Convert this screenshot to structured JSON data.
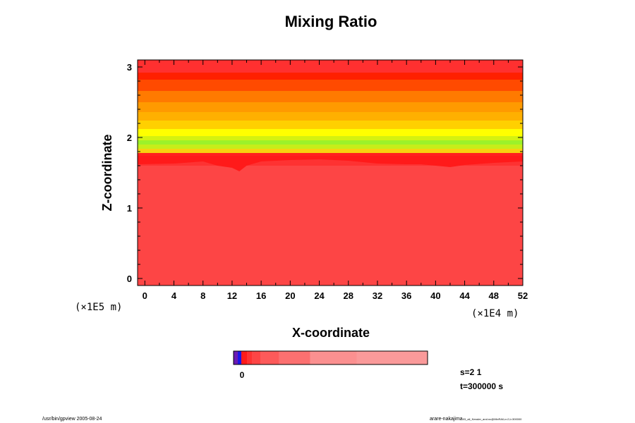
{
  "chart_data": {
    "type": "heatmap",
    "title": "Mixing Ratio",
    "xlabel": "X-coordinate",
    "ylabel": "Z-coordinate",
    "x_unit": "(×1E4 m)",
    "y_unit": "(×1E5 m)",
    "xlim": [
      -1,
      52
    ],
    "ylim": [
      -0.1,
      3.1
    ],
    "xticks": [
      0,
      4,
      8,
      12,
      16,
      20,
      24,
      28,
      32,
      36,
      40,
      44,
      48,
      52
    ],
    "yticks": [
      0,
      1,
      2,
      3
    ],
    "grid": false,
    "layers": [
      {
        "z_bottom": -0.1,
        "z_top": 1.6,
        "color": "#fd4545"
      },
      {
        "z_bottom": 1.6,
        "z_top": 1.72,
        "color": "#fe3232"
      },
      {
        "z_bottom": 1.72,
        "z_top": 1.78,
        "color": "#ff2020"
      },
      {
        "z_bottom": 1.78,
        "z_top": 1.84,
        "color": "#f7d210"
      },
      {
        "z_bottom": 1.84,
        "z_top": 1.9,
        "color": "#c6ee1a"
      },
      {
        "z_bottom": 1.9,
        "z_top": 1.96,
        "color": "#9cf22a"
      },
      {
        "z_bottom": 1.96,
        "z_top": 2.02,
        "color": "#d4f210"
      },
      {
        "z_bottom": 2.02,
        "z_top": 2.12,
        "color": "#ffff00"
      },
      {
        "z_bottom": 2.12,
        "z_top": 2.24,
        "color": "#ffd000"
      },
      {
        "z_bottom": 2.24,
        "z_top": 2.36,
        "color": "#ffb000"
      },
      {
        "z_bottom": 2.36,
        "z_top": 2.5,
        "color": "#ff9a00"
      },
      {
        "z_bottom": 2.5,
        "z_top": 2.66,
        "color": "#ff7a00"
      },
      {
        "z_bottom": 2.66,
        "z_top": 2.82,
        "color": "#ff4a00"
      },
      {
        "z_bottom": 2.82,
        "z_top": 2.92,
        "color": "#ff2000"
      },
      {
        "z_bottom": 2.92,
        "z_top": 3.1,
        "color": "#ff3030"
      }
    ],
    "interface_profile": {
      "x": [
        -1,
        4,
        8,
        10,
        12,
        13,
        14,
        16,
        20,
        24,
        28,
        32,
        36,
        38,
        40,
        42,
        44,
        48,
        52
      ],
      "z": [
        1.62,
        1.63,
        1.66,
        1.6,
        1.57,
        1.52,
        1.6,
        1.66,
        1.68,
        1.69,
        1.67,
        1.63,
        1.62,
        1.62,
        1.6,
        1.58,
        1.61,
        1.64,
        1.66
      ],
      "color": "#ff1a1a"
    },
    "colorbar": {
      "label": "0",
      "colors": [
        "#6a1bb3",
        "#1a14e6",
        "#ff1a1a",
        "#fe3232",
        "#fd4545",
        "#fd5a5a",
        "#fc7070",
        "#fb9090",
        "#fa9a9a"
      ],
      "widths": [
        6,
        5,
        8,
        7,
        12,
        26,
        44,
        66,
        100
      ]
    }
  },
  "annotations": {
    "step": "s=2 1",
    "time": "t=300000 s"
  },
  "footer": {
    "left": "/usr/bin/gpview 2005-08-24",
    "right_main": "arare-nakajima",
    "right_small": "03_ail_Kessler_and.nc@MixRAll,x=2,t=300000"
  }
}
